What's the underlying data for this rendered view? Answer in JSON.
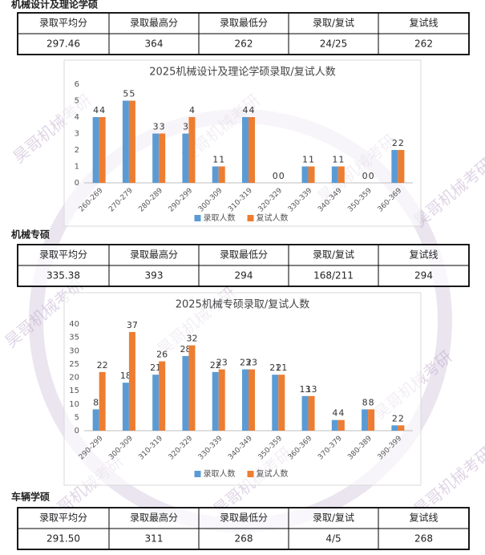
{
  "watermark": "昊哥机械考研",
  "sections": [
    {
      "title": "机械设计及理论学硕",
      "table": {
        "header": [
          "录取平均分",
          "录取最高分",
          "录取最低分",
          "录取/复试",
          "复试线"
        ],
        "rows": [
          [
            "297.46",
            "364",
            "262",
            "24/25",
            "262"
          ]
        ]
      },
      "chart_data": {
        "type": "bar",
        "title": "2025机械设计及理论学硕录取/复试人数",
        "categories": [
          "260-269",
          "270-279",
          "280-289",
          "290-299",
          "300-309",
          "310-319",
          "320-329",
          "330-339",
          "340-349",
          "350-359",
          "360-369"
        ],
        "series": [
          {
            "name": "录取人数",
            "color": "#5b9bd5",
            "values": [
              4,
              5,
              3,
              3,
              1,
              4,
              0,
              1,
              1,
              0,
              2
            ]
          },
          {
            "name": "复试人数",
            "color": "#ed7d31",
            "values": [
              4,
              5,
              3,
              4,
              1,
              4,
              0,
              1,
              1,
              0,
              2
            ]
          }
        ],
        "ylim": [
          0,
          6
        ],
        "yticks": [
          0,
          1,
          2,
          3,
          4,
          5,
          6
        ],
        "grid": false,
        "legend": "bottom"
      }
    },
    {
      "title": "机械专硕",
      "table": {
        "header": [
          "录取平均分",
          "录取最高分",
          "录取最低分",
          "录取/复试",
          "复试线"
        ],
        "rows": [
          [
            "335.38",
            "393",
            "294",
            "168/211",
            "294"
          ]
        ]
      },
      "chart_data": {
        "type": "bar",
        "title": "2025机械专硕录取/复试人数",
        "categories": [
          "290-299",
          "300-309",
          "310-319",
          "320-329",
          "330-339",
          "340-349",
          "350-359",
          "360-369",
          "370-379",
          "380-389",
          "390-399"
        ],
        "series": [
          {
            "name": "录取人数",
            "color": "#5b9bd5",
            "values": [
              8,
              18,
              21,
              28,
              22,
              23,
              21,
              13,
              4,
              8,
              2
            ]
          },
          {
            "name": "复试人数",
            "color": "#ed7d31",
            "values": [
              22,
              37,
              26,
              32,
              23,
              23,
              21,
              13,
              4,
              8,
              2
            ]
          }
        ],
        "ylim": [
          0,
          40
        ],
        "yticks": [
          0,
          5,
          10,
          15,
          20,
          25,
          30,
          35,
          40
        ],
        "grid": false,
        "legend": "bottom"
      }
    },
    {
      "title": "车辆学硕",
      "table": {
        "header": [
          "录取平均分",
          "录取最高分",
          "录取最低分",
          "录取/复试",
          "复试线"
        ],
        "rows": [
          [
            "291.50",
            "311",
            "268",
            "4/5",
            "268"
          ]
        ]
      }
    }
  ]
}
